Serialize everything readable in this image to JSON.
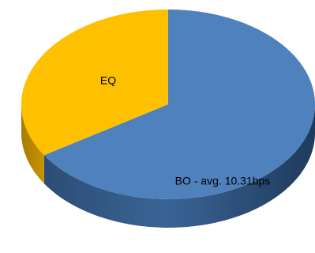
{
  "chart_data": {
    "type": "pie",
    "style": "3d",
    "slices": [
      {
        "label": "BO - avg. 10.31bps",
        "value": 66,
        "color": "#4f81bd"
      },
      {
        "label": "EQ",
        "value": 34,
        "color": "#ffc000"
      }
    ],
    "start_angle_deg": 0,
    "direction": "clockwise",
    "legend": "none",
    "data_labels": "inside"
  }
}
